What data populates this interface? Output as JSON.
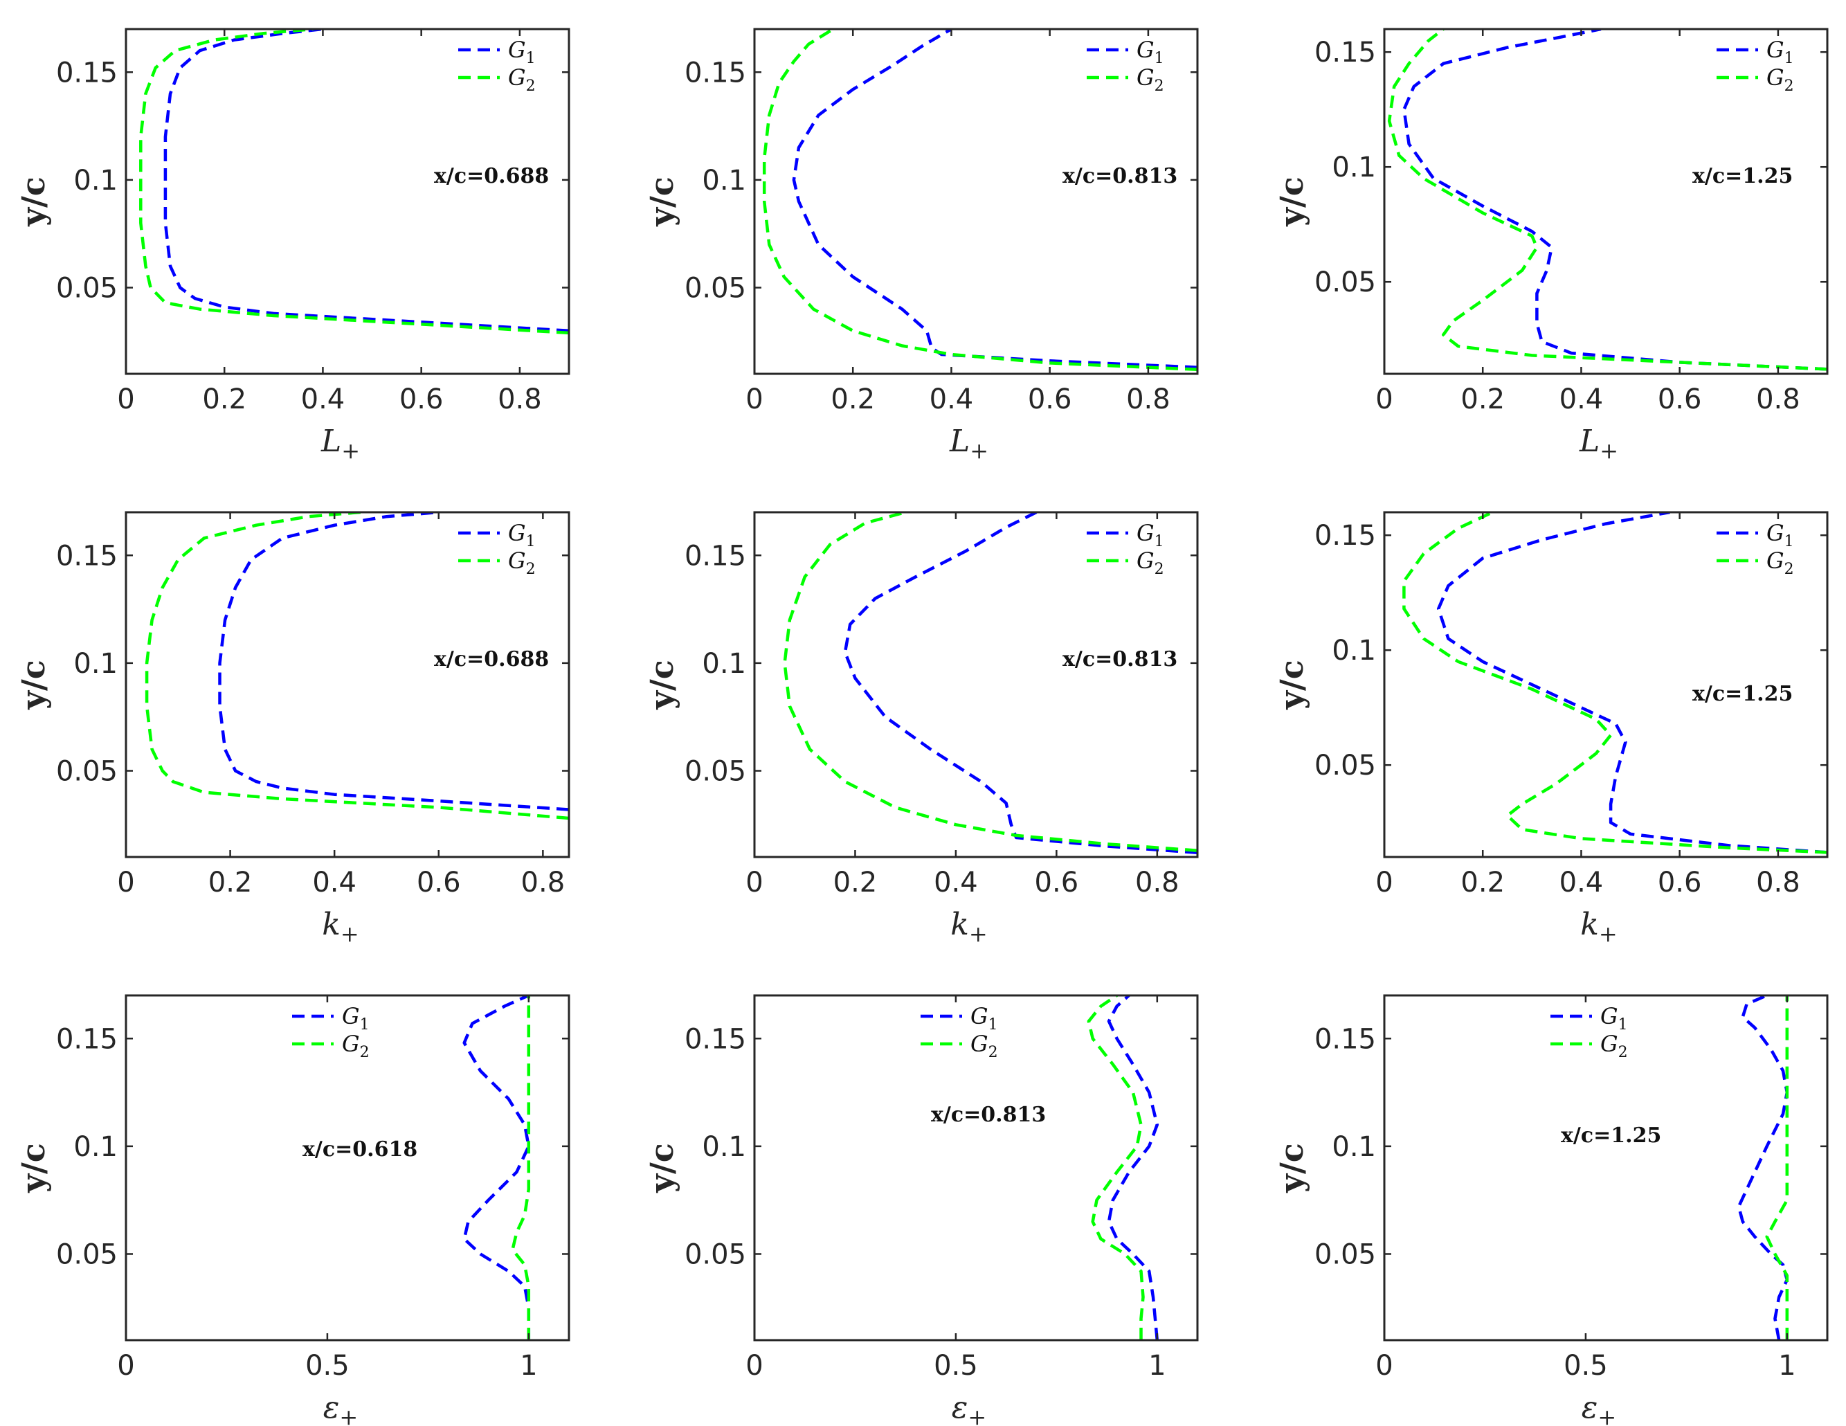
{
  "colors": {
    "G1": "#0000ff",
    "G2": "#00ff00",
    "axis": "#262626"
  },
  "legend": {
    "labels": [
      "G",
      "G"
    ],
    "subs": [
      "1",
      "2"
    ]
  },
  "ylabel": "y/c",
  "chart_data": [
    {
      "type": "line",
      "row": 0,
      "col": 0,
      "xlabel": "L",
      "xlabel_sub": "+",
      "ylabel": "y/c",
      "xlim": [
        0,
        0.9
      ],
      "ylim": [
        0.01,
        0.17
      ],
      "xticks": [
        0,
        0.2,
        0.4,
        0.6,
        0.8
      ],
      "xticklabels": [
        "0",
        "0.2",
        "0.4",
        "0.6",
        "0.8"
      ],
      "yticks": [
        0.05,
        0.1,
        0.15
      ],
      "yticklabels": [
        "0.05",
        "0.1",
        "0.15"
      ],
      "annotation": "x/c=0.688",
      "legend_pos": "top-right",
      "series": [
        {
          "name": "G1",
          "x": [
            0.9,
            0.6,
            0.3,
            0.2,
            0.14,
            0.11,
            0.09,
            0.08,
            0.08,
            0.08,
            0.09,
            0.11,
            0.15,
            0.22,
            0.32,
            0.4
          ],
          "y": [
            0.03,
            0.034,
            0.038,
            0.041,
            0.045,
            0.05,
            0.06,
            0.08,
            0.1,
            0.12,
            0.14,
            0.152,
            0.16,
            0.165,
            0.168,
            0.17
          ]
        },
        {
          "name": "G2",
          "x": [
            0.9,
            0.6,
            0.3,
            0.15,
            0.08,
            0.05,
            0.04,
            0.03,
            0.03,
            0.03,
            0.04,
            0.06,
            0.1,
            0.18,
            0.28,
            0.38
          ],
          "y": [
            0.029,
            0.033,
            0.037,
            0.04,
            0.043,
            0.05,
            0.06,
            0.08,
            0.1,
            0.12,
            0.14,
            0.152,
            0.16,
            0.165,
            0.168,
            0.17
          ]
        }
      ]
    },
    {
      "type": "line",
      "row": 0,
      "col": 1,
      "xlabel": "L",
      "xlabel_sub": "+",
      "ylabel": "y/c",
      "xlim": [
        0,
        0.9
      ],
      "ylim": [
        0.01,
        0.17
      ],
      "xticks": [
        0,
        0.2,
        0.4,
        0.6,
        0.8
      ],
      "xticklabels": [
        "0",
        "0.2",
        "0.4",
        "0.6",
        "0.8"
      ],
      "yticks": [
        0.05,
        0.1,
        0.15
      ],
      "yticklabels": [
        "0.05",
        "0.1",
        "0.15"
      ],
      "annotation": "x/c=0.813",
      "legend_pos": "top-right",
      "series": [
        {
          "name": "G1",
          "x": [
            0.9,
            0.6,
            0.38,
            0.36,
            0.35,
            0.3,
            0.2,
            0.13,
            0.09,
            0.08,
            0.09,
            0.13,
            0.2,
            0.28,
            0.34,
            0.4
          ],
          "y": [
            0.013,
            0.016,
            0.019,
            0.022,
            0.03,
            0.04,
            0.055,
            0.07,
            0.09,
            0.1,
            0.115,
            0.13,
            0.142,
            0.153,
            0.162,
            0.17
          ]
        },
        {
          "name": "G2",
          "x": [
            0.9,
            0.6,
            0.4,
            0.3,
            0.2,
            0.12,
            0.06,
            0.03,
            0.02,
            0.02,
            0.03,
            0.05,
            0.08,
            0.11,
            0.16
          ],
          "y": [
            0.012,
            0.015,
            0.019,
            0.023,
            0.03,
            0.04,
            0.055,
            0.07,
            0.09,
            0.11,
            0.13,
            0.145,
            0.155,
            0.163,
            0.17
          ]
        }
      ]
    },
    {
      "type": "line",
      "row": 0,
      "col": 2,
      "xlabel": "L",
      "xlabel_sub": "+",
      "ylabel": "y/c",
      "xlim": [
        0,
        0.9
      ],
      "ylim": [
        0.01,
        0.16
      ],
      "xticks": [
        0,
        0.2,
        0.4,
        0.6,
        0.8
      ],
      "xticklabels": [
        "0",
        "0.2",
        "0.4",
        "0.6",
        "0.8"
      ],
      "yticks": [
        0.05,
        0.1,
        0.15
      ],
      "yticklabels": [
        "0.05",
        "0.1",
        "0.15"
      ],
      "annotation": "x/c=1.25",
      "legend_pos": "top-right",
      "series": [
        {
          "name": "G1",
          "x": [
            0.9,
            0.6,
            0.38,
            0.32,
            0.31,
            0.31,
            0.33,
            0.34,
            0.3,
            0.2,
            0.1,
            0.05,
            0.04,
            0.06,
            0.12,
            0.25,
            0.37,
            0.44
          ],
          "y": [
            0.012,
            0.015,
            0.019,
            0.024,
            0.032,
            0.045,
            0.055,
            0.065,
            0.072,
            0.083,
            0.095,
            0.11,
            0.125,
            0.135,
            0.145,
            0.152,
            0.157,
            0.16
          ]
        },
        {
          "name": "G2",
          "x": [
            0.9,
            0.6,
            0.3,
            0.15,
            0.12,
            0.14,
            0.2,
            0.28,
            0.31,
            0.3,
            0.2,
            0.08,
            0.03,
            0.01,
            0.02,
            0.05,
            0.09,
            0.12
          ],
          "y": [
            0.012,
            0.015,
            0.018,
            0.022,
            0.027,
            0.033,
            0.042,
            0.055,
            0.065,
            0.07,
            0.08,
            0.095,
            0.105,
            0.12,
            0.135,
            0.145,
            0.155,
            0.16
          ]
        }
      ]
    },
    {
      "type": "line",
      "row": 1,
      "col": 0,
      "xlabel": "k",
      "xlabel_sub": "+",
      "ylabel": "y/c",
      "xlim": [
        0,
        0.85
      ],
      "ylim": [
        0.01,
        0.17
      ],
      "xticks": [
        0,
        0.2,
        0.4,
        0.6,
        0.8
      ],
      "xticklabels": [
        "0",
        "0.2",
        "0.4",
        "0.6",
        "0.8"
      ],
      "yticks": [
        0.05,
        0.1,
        0.15
      ],
      "yticklabels": [
        "0.05",
        "0.1",
        "0.15"
      ],
      "annotation": "x/c=0.688",
      "legend_pos": "top-right",
      "series": [
        {
          "name": "G1",
          "x": [
            0.85,
            0.6,
            0.4,
            0.3,
            0.25,
            0.21,
            0.19,
            0.18,
            0.18,
            0.19,
            0.21,
            0.24,
            0.3,
            0.4,
            0.5,
            0.6
          ],
          "y": [
            0.032,
            0.036,
            0.039,
            0.042,
            0.045,
            0.05,
            0.06,
            0.08,
            0.1,
            0.12,
            0.135,
            0.148,
            0.158,
            0.164,
            0.168,
            0.17
          ]
        },
        {
          "name": "G2",
          "x": [
            0.85,
            0.6,
            0.3,
            0.15,
            0.09,
            0.07,
            0.05,
            0.04,
            0.04,
            0.05,
            0.07,
            0.1,
            0.15,
            0.25,
            0.35,
            0.45
          ],
          "y": [
            0.028,
            0.033,
            0.037,
            0.04,
            0.045,
            0.05,
            0.06,
            0.08,
            0.1,
            0.12,
            0.135,
            0.148,
            0.158,
            0.164,
            0.168,
            0.17
          ]
        }
      ]
    },
    {
      "type": "line",
      "row": 1,
      "col": 1,
      "xlabel": "k",
      "xlabel_sub": "+",
      "ylabel": "y/c",
      "xlim": [
        0,
        0.88
      ],
      "ylim": [
        0.01,
        0.17
      ],
      "xticks": [
        0,
        0.2,
        0.4,
        0.6,
        0.8
      ],
      "xticklabels": [
        "0",
        "0.2",
        "0.4",
        "0.6",
        "0.8"
      ],
      "yticks": [
        0.05,
        0.1,
        0.15
      ],
      "yticklabels": [
        "0.05",
        "0.1",
        "0.15"
      ],
      "annotation": "x/c=0.813",
      "legend_pos": "top-right",
      "series": [
        {
          "name": "G1",
          "x": [
            0.88,
            0.7,
            0.52,
            0.51,
            0.5,
            0.45,
            0.35,
            0.26,
            0.2,
            0.18,
            0.19,
            0.24,
            0.32,
            0.42,
            0.5,
            0.56
          ],
          "y": [
            0.012,
            0.015,
            0.019,
            0.025,
            0.035,
            0.045,
            0.06,
            0.075,
            0.093,
            0.105,
            0.118,
            0.13,
            0.14,
            0.152,
            0.163,
            0.17
          ]
        },
        {
          "name": "G2",
          "x": [
            0.88,
            0.7,
            0.52,
            0.4,
            0.28,
            0.18,
            0.11,
            0.07,
            0.06,
            0.07,
            0.1,
            0.15,
            0.22,
            0.3
          ],
          "y": [
            0.013,
            0.016,
            0.02,
            0.025,
            0.033,
            0.045,
            0.06,
            0.08,
            0.1,
            0.12,
            0.14,
            0.155,
            0.165,
            0.17
          ]
        }
      ]
    },
    {
      "type": "line",
      "row": 1,
      "col": 2,
      "xlabel": "k",
      "xlabel_sub": "+",
      "ylabel": "y/c",
      "xlim": [
        0,
        0.9
      ],
      "ylim": [
        0.01,
        0.16
      ],
      "xticks": [
        0,
        0.2,
        0.4,
        0.6,
        0.8
      ],
      "xticklabels": [
        "0",
        "0.2",
        "0.4",
        "0.6",
        "0.8"
      ],
      "yticks": [
        0.05,
        0.1,
        0.15
      ],
      "yticklabels": [
        "0.05",
        "0.1",
        "0.15"
      ],
      "annotation": "x/c=1.25",
      "legend_pos": "top-right",
      "series": [
        {
          "name": "G1",
          "x": [
            0.9,
            0.7,
            0.5,
            0.46,
            0.46,
            0.47,
            0.49,
            0.47,
            0.4,
            0.3,
            0.2,
            0.13,
            0.11,
            0.13,
            0.2,
            0.32,
            0.45,
            0.58
          ],
          "y": [
            0.012,
            0.015,
            0.02,
            0.025,
            0.033,
            0.045,
            0.06,
            0.068,
            0.075,
            0.085,
            0.095,
            0.105,
            0.118,
            0.128,
            0.14,
            0.148,
            0.155,
            0.16
          ]
        },
        {
          "name": "G2",
          "x": [
            0.9,
            0.7,
            0.4,
            0.28,
            0.25,
            0.28,
            0.35,
            0.43,
            0.46,
            0.43,
            0.3,
            0.15,
            0.08,
            0.04,
            0.04,
            0.08,
            0.15,
            0.22
          ],
          "y": [
            0.012,
            0.014,
            0.018,
            0.022,
            0.028,
            0.033,
            0.042,
            0.055,
            0.063,
            0.07,
            0.083,
            0.095,
            0.105,
            0.118,
            0.13,
            0.142,
            0.153,
            0.16
          ]
        }
      ]
    },
    {
      "type": "line",
      "row": 2,
      "col": 0,
      "xlabel": "ε",
      "xlabel_sub": "+",
      "ylabel": "y/c",
      "xlim": [
        0,
        1.1
      ],
      "ylim": [
        0.01,
        0.17
      ],
      "xticks": [
        0,
        0.5,
        1
      ],
      "xticklabels": [
        "0",
        "0.5",
        "1"
      ],
      "yticks": [
        0.05,
        0.1,
        0.15
      ],
      "yticklabels": [
        "0.05",
        "0.1",
        "0.15"
      ],
      "annotation": "x/c=0.618",
      "legend_pos": "top-center",
      "series": [
        {
          "name": "G1",
          "x": [
            1.0,
            1.0,
            0.99,
            0.95,
            0.88,
            0.84,
            0.85,
            0.9,
            0.97,
            1.0,
            0.99,
            0.95,
            0.88,
            0.84,
            0.86,
            0.94,
            1.0
          ],
          "y": [
            0.01,
            0.025,
            0.035,
            0.042,
            0.05,
            0.057,
            0.065,
            0.075,
            0.088,
            0.1,
            0.11,
            0.122,
            0.135,
            0.148,
            0.157,
            0.165,
            0.17
          ]
        },
        {
          "name": "G2",
          "x": [
            1.0,
            1.0,
            1.0,
            0.99,
            0.96,
            0.97,
            0.99,
            1.0,
            1.0,
            1.0,
            1.0,
            1.0
          ],
          "y": [
            0.01,
            0.025,
            0.035,
            0.045,
            0.052,
            0.06,
            0.068,
            0.08,
            0.1,
            0.13,
            0.15,
            0.17
          ]
        }
      ]
    },
    {
      "type": "line",
      "row": 2,
      "col": 1,
      "xlabel": "ε",
      "xlabel_sub": "+",
      "ylabel": "y/c",
      "xlim": [
        0,
        1.1
      ],
      "ylim": [
        0.01,
        0.17
      ],
      "xticks": [
        0,
        0.5,
        1
      ],
      "xticklabels": [
        "0",
        "0.5",
        "1"
      ],
      "yticks": [
        0.05,
        0.1,
        0.15
      ],
      "yticklabels": [
        "0.05",
        "0.1",
        "0.15"
      ],
      "annotation": "x/c=0.813",
      "legend_pos": "top-center",
      "series": [
        {
          "name": "G1",
          "x": [
            1.0,
            0.995,
            0.99,
            0.98,
            0.94,
            0.9,
            0.88,
            0.89,
            0.93,
            0.98,
            1.0,
            0.98,
            0.94,
            0.9,
            0.88,
            0.9,
            0.93
          ],
          "y": [
            0.01,
            0.02,
            0.03,
            0.042,
            0.05,
            0.057,
            0.065,
            0.075,
            0.088,
            0.1,
            0.11,
            0.125,
            0.138,
            0.15,
            0.158,
            0.165,
            0.17
          ]
        },
        {
          "name": "G2",
          "x": [
            0.96,
            0.96,
            0.965,
            0.96,
            0.92,
            0.86,
            0.84,
            0.85,
            0.9,
            0.95,
            0.96,
            0.94,
            0.89,
            0.84,
            0.83,
            0.86,
            0.9
          ],
          "y": [
            0.01,
            0.02,
            0.03,
            0.042,
            0.05,
            0.057,
            0.065,
            0.075,
            0.088,
            0.1,
            0.11,
            0.125,
            0.138,
            0.15,
            0.158,
            0.165,
            0.17
          ]
        }
      ]
    },
    {
      "type": "line",
      "row": 2,
      "col": 2,
      "xlabel": "ε",
      "xlabel_sub": "+",
      "ylabel": "y/c",
      "xlim": [
        0,
        1.1
      ],
      "ylim": [
        0.01,
        0.17
      ],
      "xticks": [
        0,
        0.5,
        1
      ],
      "xticklabels": [
        "0",
        "0.5",
        "1"
      ],
      "yticks": [
        0.05,
        0.1,
        0.15
      ],
      "yticklabels": [
        "0.05",
        "0.1",
        "0.15"
      ],
      "annotation": "x/c=1.25",
      "legend_pos": "top-center",
      "series": [
        {
          "name": "G1",
          "x": [
            0.98,
            0.97,
            0.98,
            1.0,
            0.99,
            0.96,
            0.92,
            0.89,
            0.88,
            0.9,
            0.95,
            0.99,
            1.0,
            0.99,
            0.96,
            0.92,
            0.89,
            0.9,
            0.95
          ],
          "y": [
            0.01,
            0.02,
            0.03,
            0.038,
            0.045,
            0.05,
            0.058,
            0.065,
            0.072,
            0.08,
            0.1,
            0.115,
            0.125,
            0.135,
            0.145,
            0.155,
            0.16,
            0.166,
            0.17
          ]
        },
        {
          "name": "G2",
          "x": [
            1.0,
            1.0,
            1.0,
            0.97,
            0.95,
            0.97,
            1.0,
            1.0,
            1.0,
            1.0,
            1.0
          ],
          "y": [
            0.01,
            0.025,
            0.04,
            0.05,
            0.058,
            0.065,
            0.075,
            0.1,
            0.13,
            0.15,
            0.17
          ]
        }
      ]
    }
  ]
}
